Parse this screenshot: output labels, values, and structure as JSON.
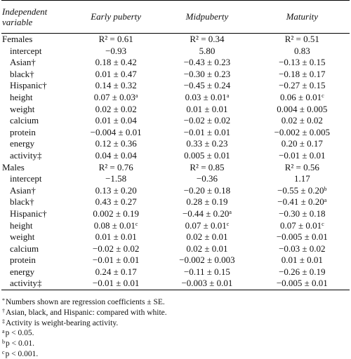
{
  "header": {
    "columns": [
      "Independent variable",
      "Early puberty",
      "Midpuberty",
      "Maturity"
    ]
  },
  "table": {
    "sections": [
      {
        "label": "Females",
        "r2": [
          "R² = 0.61",
          "R² = 0.34",
          "R² = 0.51"
        ],
        "rows": [
          {
            "label": "intercept",
            "cells": [
              "−0.93",
              "5.80",
              "0.83"
            ]
          },
          {
            "label": "Asian†",
            "cells": [
              "0.18 ± 0.42",
              "−0.43 ± 0.23",
              "−0.13 ± 0.15"
            ]
          },
          {
            "label": "black†",
            "cells": [
              "0.01 ± 0.47",
              "−0.30 ± 0.23",
              "−0.18 ± 0.17"
            ]
          },
          {
            "label": "Hispanic†",
            "cells": [
              "0.14 ± 0.32",
              "−0.45 ± 0.24",
              "−0.27 ± 0.15"
            ]
          },
          {
            "label": "height",
            "cells": [
              {
                "text": "0.07 ± 0.03",
                "sup": "a"
              },
              {
                "text": "0.03 ± 0.01",
                "sup": "a"
              },
              {
                "text": "0.06 ± 0.01",
                "sup": "c"
              }
            ]
          },
          {
            "label": "weight",
            "cells": [
              "0.02 ± 0.02",
              "0.01 ± 0.01",
              "0.004 ± 0.005"
            ]
          },
          {
            "label": "calcium",
            "cells": [
              "0.01 ± 0.04",
              "−0.02 ± 0.02",
              "0.02 ± 0.02"
            ]
          },
          {
            "label": "protein",
            "cells": [
              "−0.004 ± 0.01",
              "−0.01 ± 0.01",
              "−0.002 ± 0.005"
            ]
          },
          {
            "label": "energy",
            "cells": [
              "0.12 ± 0.36",
              "0.33 ± 0.23",
              "0.20 ± 0.17"
            ]
          },
          {
            "label": "activity‡",
            "cells": [
              "0.04 ± 0.04",
              "0.005 ± 0.01",
              "−0.01 ± 0.01"
            ]
          }
        ]
      },
      {
        "label": "Males",
        "r2": [
          "R² = 0.76",
          "R² = 0.85",
          "R² = 0.56"
        ],
        "rows": [
          {
            "label": "intercept",
            "cells": [
              "−1.58",
              "−0.36",
              "1.17"
            ]
          },
          {
            "label": "Asian†",
            "cells": [
              "0.13 ± 0.20",
              "−0.20 ± 0.18",
              {
                "text": "−0.55 ± 0.20",
                "sup": "b"
              }
            ]
          },
          {
            "label": "black†",
            "cells": [
              "0.43 ± 0.27",
              "0.28 ± 0.19",
              {
                "text": "−0.41 ± 0.20",
                "sup": "a"
              }
            ]
          },
          {
            "label": "Hispanic†",
            "cells": [
              "0.002 ± 0.19",
              {
                "text": "−0.44 ± 0.20",
                "sup": "a"
              },
              "−0.30 ± 0.18"
            ]
          },
          {
            "label": "height",
            "cells": [
              {
                "text": "0.08 ± 0.01",
                "sup": "c"
              },
              {
                "text": "0.07 ± 0.01",
                "sup": "c"
              },
              {
                "text": "0.07 ± 0.01",
                "sup": "c"
              }
            ]
          },
          {
            "label": "weight",
            "cells": [
              "0.01 ± 0.01",
              "0.02 ± 0.01",
              "−0.005 ± 0.01"
            ]
          },
          {
            "label": "calcium",
            "cells": [
              "−0.02 ± 0.02",
              "0.02 ± 0.01",
              "−0.03 ± 0.02"
            ]
          },
          {
            "label": "protein",
            "cells": [
              "−0.01 ± 0.01",
              "−0.002 ± 0.003",
              "0.01 ± 0.01"
            ]
          },
          {
            "label": "energy",
            "cells": [
              "0.24 ± 0.17",
              "−0.11 ± 0.15",
              "−0.26 ± 0.19"
            ]
          },
          {
            "label": "activity‡",
            "cells": [
              "−0.01 ± 0.01",
              "−0.003 ± 0.01",
              "−0.005 ± 0.01"
            ]
          }
        ]
      }
    ]
  },
  "footnotes": [
    {
      "mark": "*",
      "text": "Numbers shown are regression coefficients ± SE."
    },
    {
      "mark": "†",
      "text": "Asian, black, and Hispanic: compared with white."
    },
    {
      "mark": "‡",
      "text": "Activity is weight-bearing activity."
    },
    {
      "mark": "a",
      "text": "p < 0.05."
    },
    {
      "mark": "b",
      "text": "p < 0.01."
    },
    {
      "mark": "c",
      "text": "p < 0.001."
    }
  ]
}
